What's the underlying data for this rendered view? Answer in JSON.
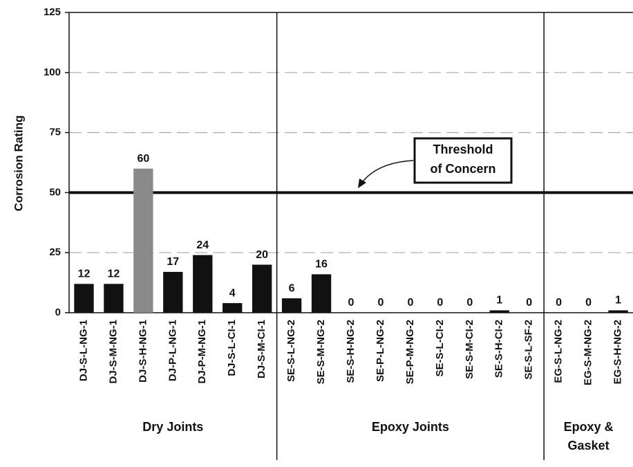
{
  "chart_data": {
    "type": "bar",
    "y_label": "Corrosion Rating",
    "ylim": [
      0,
      125
    ],
    "yticks": [
      0,
      25,
      50,
      75,
      100,
      125
    ],
    "grid": true,
    "groups": [
      {
        "name": [
          "Dry Joints"
        ],
        "categories": [
          "DJ-S-L-NG-1",
          "DJ-S-M-NG-1",
          "DJ-S-H-NG-1",
          "DJ-P-L-NG-1",
          "DJ-P-M-NG-1",
          "DJ-S-L-CI-1",
          "DJ-S-M-CI-1"
        ],
        "values": [
          12,
          12,
          60,
          17,
          24,
          4,
          20
        ],
        "colors": [
          "#111111",
          "#111111",
          "#8a8a8a",
          "#111111",
          "#111111",
          "#111111",
          "#111111"
        ]
      },
      {
        "name": [
          "Epoxy Joints"
        ],
        "categories": [
          "SE-S-L-NG-2",
          "SE-S-M-NG-2",
          "SE-S-H-NG-2",
          "SE-P-L-NG-2",
          "SE-P-M-NG-2",
          "SE-S-L-CI-2",
          "SE-S-M-CI-2",
          "SE-S-H-CI-2",
          "SE-S-L-SF-2"
        ],
        "values": [
          6,
          16,
          0,
          0,
          0,
          0,
          0,
          1,
          0
        ],
        "colors": [
          "#111111",
          "#111111",
          "#111111",
          "#111111",
          "#111111",
          "#111111",
          "#111111",
          "#111111",
          "#111111"
        ]
      },
      {
        "name": [
          "Epoxy &",
          "Gasket"
        ],
        "categories": [
          "EG-S-L-NG-2",
          "EG-S-M-NG-2",
          "EG-S-H-NG-2"
        ],
        "values": [
          0,
          0,
          1
        ],
        "colors": [
          "#111111",
          "#111111",
          "#111111"
        ]
      }
    ],
    "threshold": {
      "value": 50,
      "label": [
        "Threshold",
        "of Concern"
      ]
    }
  }
}
